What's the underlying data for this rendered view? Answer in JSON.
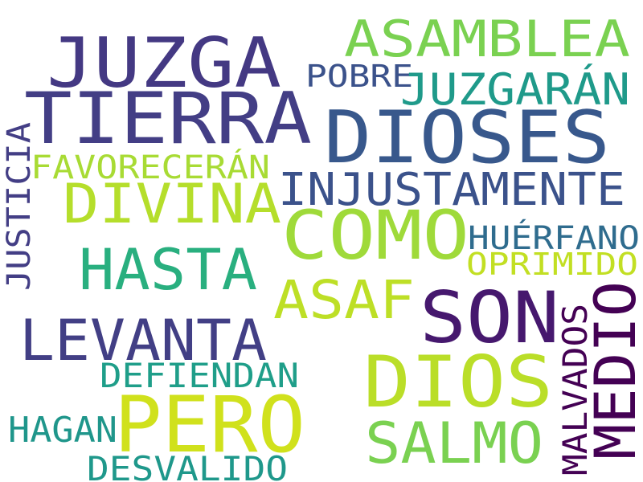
{
  "words": [
    {
      "text": "JUZGA",
      "color": "#443983"
    },
    {
      "text": "TIERRA",
      "color": "#433e85"
    },
    {
      "text": "ASAMBLEA",
      "color": "#7ad151"
    },
    {
      "text": "DIOSES",
      "color": "#38588c"
    },
    {
      "text": "POBRE",
      "color": "#3b528b"
    },
    {
      "text": "JUZGARÁN",
      "color": "#1f9a8a"
    },
    {
      "text": "JUSTICIA",
      "color": "#433e85"
    },
    {
      "text": "FAVORECERÁN",
      "color": "#a8db34"
    },
    {
      "text": "INJUSTAMENTE",
      "color": "#3b528b"
    },
    {
      "text": "DIVINA",
      "color": "#b5de2b"
    },
    {
      "text": "COMO",
      "color": "#9fda3a"
    },
    {
      "text": "HUÉRFANO",
      "color": "#2f6c8e"
    },
    {
      "text": "OPRIMIDO",
      "color": "#c2df23"
    },
    {
      "text": "HASTA",
      "color": "#29af7f"
    },
    {
      "text": "ASAF",
      "color": "#bddf26"
    },
    {
      "text": "SON",
      "color": "#46186e"
    },
    {
      "text": "LEVANTA",
      "color": "#423f85"
    },
    {
      "text": "MALVADOS",
      "color": "#440154"
    },
    {
      "text": "MEDIO",
      "color": "#440154"
    },
    {
      "text": "DIOS",
      "color": "#bade28"
    },
    {
      "text": "DEFIENDAN",
      "color": "#1f9e89"
    },
    {
      "text": "PERO",
      "color": "#d0e11c"
    },
    {
      "text": "SALMO",
      "color": "#7ad151"
    },
    {
      "text": "HAGAN",
      "color": "#1f968b"
    },
    {
      "text": "DESVALIDO",
      "color": "#1f988b"
    }
  ]
}
